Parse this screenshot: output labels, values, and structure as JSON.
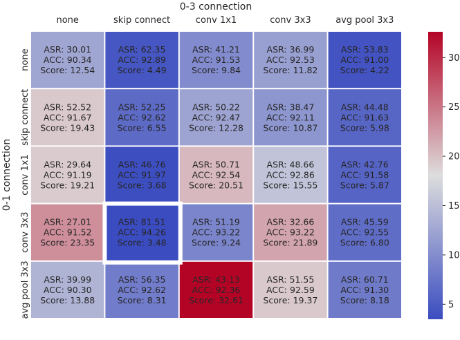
{
  "chart_data": {
    "type": "heatmap",
    "x_title": "0-3 connection",
    "y_title": "0-1 connection",
    "columns": [
      "none",
      "skip connect",
      "conv 1x1",
      "conv 3x3",
      "avg pool 3x3"
    ],
    "rows": [
      "none",
      "skip connect",
      "conv 1x1",
      "conv 3x3",
      "avg pool 3x3"
    ],
    "metric_prefixes": [
      "ASR: ",
      "ACC: ",
      "Score: "
    ],
    "cells": [
      [
        {
          "asr": "30.01",
          "acc": "90.34",
          "score": 12.54
        },
        {
          "asr": "62.35",
          "acc": "92.89",
          "score": 4.49
        },
        {
          "asr": "41.21",
          "acc": "91.53",
          "score": 9.84
        },
        {
          "asr": "36.99",
          "acc": "92.53",
          "score": 11.82
        },
        {
          "asr": "53.83",
          "acc": "91.00",
          "score": 4.22
        }
      ],
      [
        {
          "asr": "52.52",
          "acc": "91.67",
          "score": 19.43
        },
        {
          "asr": "52.25",
          "acc": "92.62",
          "score": 6.55
        },
        {
          "asr": "50.22",
          "acc": "92.47",
          "score": 12.28
        },
        {
          "asr": "38.47",
          "acc": "92.11",
          "score": 10.87
        },
        {
          "asr": "44.48",
          "acc": "91.63",
          "score": 5.98
        }
      ],
      [
        {
          "asr": "29.64",
          "acc": "91.19",
          "score": 19.21
        },
        {
          "asr": "46.76",
          "acc": "91.97",
          "score": 3.68
        },
        {
          "asr": "50.71",
          "acc": "92.54",
          "score": 20.51
        },
        {
          "asr": "48.66",
          "acc": "92.86",
          "score": 15.55
        },
        {
          "asr": "42.76",
          "acc": "91.58",
          "score": 5.87
        }
      ],
      [
        {
          "asr": "27.01",
          "acc": "91.52",
          "score": 23.35
        },
        {
          "asr": "81.51",
          "acc": "94.26",
          "score": 3.48
        },
        {
          "asr": "51.19",
          "acc": "93.22",
          "score": 9.24
        },
        {
          "asr": "32.66",
          "acc": "93.22",
          "score": 21.89
        },
        {
          "asr": "45.59",
          "acc": "92.55",
          "score": 6.8
        }
      ],
      [
        {
          "asr": "39.99",
          "acc": "90.30",
          "score": 13.88
        },
        {
          "asr": "56.35",
          "acc": "92.62",
          "score": 8.31
        },
        {
          "asr": "43.13",
          "acc": "92.36",
          "score": 32.61
        },
        {
          "asr": "51.55",
          "acc": "92.59",
          "score": 19.37
        },
        {
          "asr": "60.71",
          "acc": "91.30",
          "score": 8.18
        }
      ]
    ],
    "highlight": {
      "row": 3,
      "col": 1
    },
    "colorbar": {
      "colormap": "coolwarm",
      "range": [
        3.48,
        32.61
      ],
      "ticks": [
        5,
        10,
        15,
        20,
        25,
        30
      ]
    }
  },
  "colors": {
    "coolwarm_low": "#3b4cc0",
    "coolwarm_mid": "#dddddd",
    "coolwarm_high": "#b40426",
    "highlight_border": "#ffffff",
    "text": "#262626"
  }
}
